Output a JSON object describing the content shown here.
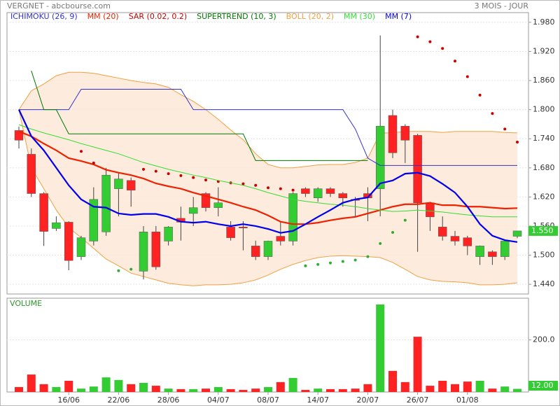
{
  "header": {
    "title": "VERGNET - abcbourse.com",
    "period": "3 MOIS - JOUR"
  },
  "chart_data": [
    {
      "type": "candlestick",
      "categories": [
        null,
        null,
        null,
        null,
        "16/06",
        null,
        null,
        null,
        "22/06",
        null,
        null,
        null,
        "28/06",
        null,
        null,
        null,
        "04/07",
        null,
        null,
        null,
        "08/07",
        null,
        null,
        null,
        "14/07",
        null,
        null,
        null,
        "20/07",
        null,
        null,
        null,
        "26/07",
        null,
        null,
        null,
        "01/08",
        null,
        null,
        null,
        null
      ],
      "open": [
        1.757,
        1.708,
        1.627,
        1.555,
        1.568,
        1.497,
        1.529,
        1.548,
        1.637,
        1.654,
        1.467,
        1.548,
        1.529,
        1.576,
        1.586,
        1.627,
        1.598,
        1.558,
        1.558,
        1.519,
        1.497,
        1.539,
        1.529,
        1.637,
        1.618,
        1.637,
        1.627,
        1.615,
        1.627,
        1.637,
        1.788,
        1.766,
        1.747,
        1.608,
        1.558,
        1.539,
        1.536,
        1.497,
        1.507,
        1.497,
        1.539
      ],
      "high": [
        1.765,
        1.72,
        1.63,
        1.58,
        1.57,
        1.54,
        1.64,
        1.68,
        1.67,
        1.66,
        1.56,
        1.56,
        1.56,
        1.6,
        1.62,
        1.63,
        1.64,
        1.57,
        1.57,
        1.53,
        1.53,
        1.57,
        1.63,
        1.64,
        1.64,
        1.64,
        1.63,
        1.62,
        1.64,
        1.953,
        1.8,
        1.77,
        1.75,
        1.61,
        1.58,
        1.55,
        1.54,
        1.52,
        1.51,
        1.53,
        1.55
      ],
      "low": [
        1.72,
        1.62,
        1.519,
        1.55,
        1.469,
        1.49,
        1.52,
        1.54,
        1.58,
        1.6,
        1.45,
        1.47,
        1.52,
        1.53,
        1.56,
        1.59,
        1.58,
        1.53,
        1.51,
        1.49,
        1.49,
        1.52,
        1.52,
        1.62,
        1.61,
        1.62,
        1.6,
        1.58,
        1.57,
        1.58,
        1.7,
        1.69,
        1.507,
        1.55,
        1.53,
        1.52,
        1.5,
        1.48,
        1.48,
        1.49,
        1.535
      ],
      "close": [
        1.737,
        1.627,
        1.549,
        1.567,
        1.489,
        1.536,
        1.615,
        1.665,
        1.657,
        1.634,
        1.548,
        1.476,
        1.558,
        1.568,
        1.598,
        1.598,
        1.608,
        1.536,
        1.556,
        1.497,
        1.529,
        1.529,
        1.627,
        1.627,
        1.637,
        1.627,
        1.618,
        1.613,
        1.618,
        1.766,
        1.711,
        1.737,
        1.608,
        1.579,
        1.539,
        1.529,
        1.519,
        1.519,
        1.497,
        1.529,
        1.55
      ],
      "up_color": "#33cc33",
      "down_color": "#ff2222",
      "last": {
        "value": 1.55,
        "label": "1.550"
      },
      "ylim": [
        1.42,
        2.0
      ],
      "yticks": [
        {
          "value": 1.98,
          "label": "1.980"
        },
        {
          "value": 1.92,
          "label": "1.920"
        },
        {
          "value": 1.86,
          "label": "1.860"
        },
        {
          "value": 1.8,
          "label": "1.800"
        },
        {
          "value": 1.74,
          "label": "1.740"
        },
        {
          "value": 1.68,
          "label": "1.680"
        },
        {
          "value": 1.62,
          "label": "1.620"
        },
        {
          "value": 1.56,
          "label": "1.560"
        },
        {
          "value": 1.5,
          "label": "1.500"
        },
        {
          "value": 1.44,
          "label": "1.440"
        }
      ],
      "grid": true,
      "series": [
        {
          "name": "ICHIMOKU (26, 9)",
          "color": "#3333cc",
          "kind": "line",
          "values": [
            1.8,
            1.8,
            1.8,
            1.8,
            1.8,
            1.842,
            1.842,
            1.842,
            1.842,
            1.842,
            1.842,
            1.842,
            1.842,
            1.842,
            1.8,
            1.8,
            1.8,
            1.8,
            1.8,
            1.8,
            1.8,
            1.8,
            1.8,
            1.8,
            1.8,
            1.8,
            1.8,
            1.76,
            1.7,
            1.685,
            1.685,
            1.685,
            1.685,
            1.685,
            1.685,
            1.685,
            1.685,
            1.685,
            1.685,
            1.685,
            1.685
          ]
        },
        {
          "name": "MM (20)",
          "color": "#ee2200",
          "kind": "line",
          "values": [
            1.755,
            1.745,
            1.73,
            1.716,
            1.7,
            1.694,
            1.687,
            1.676,
            1.67,
            1.665,
            1.658,
            1.648,
            1.642,
            1.637,
            1.629,
            1.622,
            1.615,
            1.608,
            1.6,
            1.593,
            1.582,
            1.569,
            1.564,
            1.564,
            1.567,
            1.572,
            1.576,
            1.579,
            1.586,
            1.593,
            1.6,
            1.605,
            1.605,
            1.608,
            1.603,
            1.603,
            1.6,
            1.6,
            1.598,
            1.596,
            1.597
          ]
        },
        {
          "name": "SAR (0.02, 0.2)",
          "color": "#cc0000",
          "color_below": "#33aa33",
          "kind": "dots",
          "values": [
            null,
            null,
            null,
            null,
            null,
            1.714,
            1.69,
            null,
            1.468,
            1.471,
            1.677,
            1.673,
            1.668,
            1.664,
            1.66,
            1.655,
            1.652,
            1.649,
            1.647,
            1.644,
            1.639,
            1.637,
            1.634,
            1.478,
            1.481,
            1.484,
            1.487,
            1.49,
            1.497,
            1.524,
            1.547,
            1.572,
            1.95,
            1.94,
            1.926,
            1.9,
            1.868,
            1.83,
            1.792,
            1.76,
            1.733
          ]
        },
        {
          "name": "SUPERTREND (10, 3)",
          "color": "#007700",
          "kind": "line",
          "values": [
            null,
            1.88,
            1.8,
            1.8,
            1.75,
            1.75,
            1.75,
            1.75,
            1.75,
            1.75,
            1.75,
            1.75,
            1.75,
            1.75,
            1.75,
            1.75,
            1.75,
            1.75,
            1.75,
            1.695,
            1.695,
            1.695,
            1.695,
            1.695,
            1.695,
            1.695,
            1.695,
            1.695,
            1.695,
            null,
            null,
            null,
            null,
            null,
            null,
            null,
            null,
            null,
            null,
            null,
            null
          ]
        },
        {
          "name": "BOLL (20, 2)",
          "color": "#f0a040",
          "kind": "band",
          "upper": [
            1.8,
            1.839,
            1.853,
            1.87,
            1.877,
            1.877,
            1.875,
            1.87,
            1.865,
            1.86,
            1.856,
            1.853,
            1.846,
            1.831,
            1.817,
            1.8,
            1.78,
            1.758,
            1.738,
            1.709,
            1.687,
            1.68,
            1.68,
            1.683,
            1.686,
            1.687,
            1.687,
            1.691,
            1.7,
            1.752,
            1.752,
            1.755,
            1.755,
            1.755,
            1.753,
            1.755,
            1.755,
            1.755,
            1.755,
            1.753,
            1.752
          ],
          "lower": [
            1.8,
            1.68,
            1.637,
            1.593,
            1.557,
            1.536,
            1.514,
            1.492,
            1.478,
            1.463,
            1.456,
            1.449,
            1.442,
            1.439,
            1.437,
            1.439,
            1.439,
            1.44,
            1.443,
            1.449,
            1.459,
            1.471,
            1.481,
            1.489,
            1.495,
            1.498,
            1.499,
            1.498,
            1.497,
            1.495,
            1.485,
            1.471,
            1.456,
            1.449,
            1.446,
            1.445,
            1.443,
            1.439,
            1.439,
            1.44,
            1.443
          ]
        },
        {
          "name": "MM (30)",
          "color": "#33dd33",
          "kind": "line",
          "values": [
            1.769,
            1.76,
            1.752,
            1.745,
            1.738,
            1.73,
            1.723,
            1.716,
            1.709,
            1.7,
            1.691,
            1.684,
            1.677,
            1.671,
            1.665,
            1.66,
            1.654,
            1.649,
            1.644,
            1.637,
            1.629,
            1.622,
            1.615,
            1.611,
            1.608,
            1.605,
            1.603,
            1.6,
            1.596,
            1.593,
            1.59,
            1.591,
            1.593,
            1.591,
            1.589,
            1.586,
            1.583,
            1.581,
            1.579,
            1.579,
            1.579
          ]
        },
        {
          "name": "MM (7)",
          "color": "#0000ee",
          "kind": "line",
          "values": [
            1.8,
            1.745,
            1.716,
            1.68,
            1.644,
            1.615,
            1.6,
            1.598,
            1.586,
            1.583,
            1.585,
            1.585,
            1.579,
            1.569,
            1.567,
            1.569,
            1.564,
            1.56,
            1.564,
            1.56,
            1.554,
            1.546,
            1.55,
            1.564,
            1.579,
            1.593,
            1.608,
            1.615,
            1.619,
            1.648,
            1.654,
            1.668,
            1.67,
            1.663,
            1.647,
            1.629,
            1.6,
            1.564,
            1.54,
            1.531,
            1.527
          ]
        }
      ]
    },
    {
      "type": "bar",
      "title": "VOLUME",
      "values": [
        19,
        67,
        30,
        19,
        43,
        13,
        21,
        56,
        46,
        30,
        35,
        24,
        13,
        11,
        11,
        13,
        19,
        11,
        8,
        13,
        19,
        38,
        54,
        8,
        13,
        11,
        11,
        13,
        30,
        336,
        81,
        38,
        212,
        24,
        43,
        30,
        40,
        43,
        13,
        21,
        12
      ],
      "last": {
        "value": 12,
        "label": "12.00"
      },
      "ylim": [
        0,
        360
      ],
      "yticks": [
        {
          "value": 200,
          "label": "200.0"
        }
      ],
      "grid": true
    }
  ]
}
